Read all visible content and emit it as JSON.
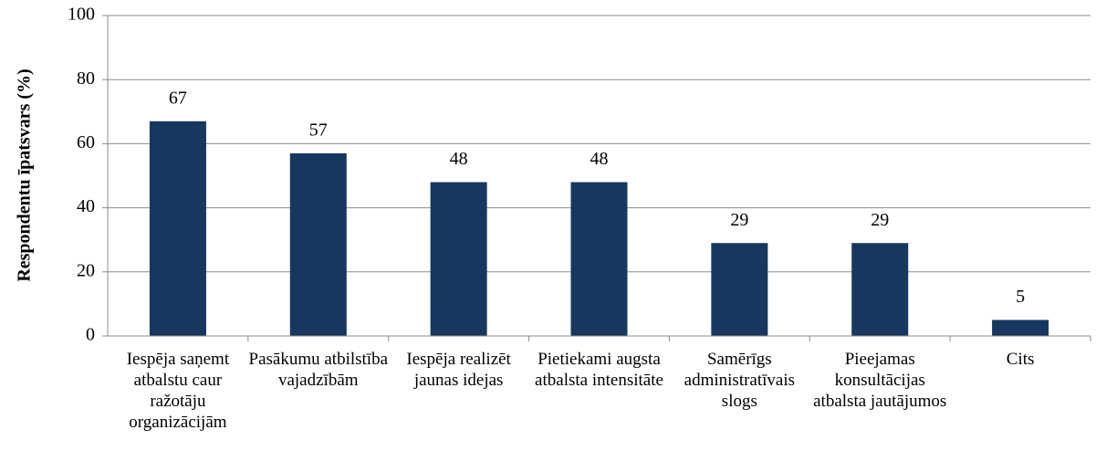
{
  "chart_data": {
    "type": "bar",
    "y_label": "Respondentu īpatsvars (%)",
    "categories": [
      "Iespēja saņemt atbalstu caur ražotāju organizācijām",
      "Pasākumu atbilstība vajadzībām",
      "Iespēja realizēt jaunas idejas",
      "Pietiekami augsta atbalsta intensitāte",
      "Samērīgs administratīvais slogs",
      "Pieejamas konsultācijas atbalsta jautājumos",
      "Cits"
    ],
    "values": [
      67,
      57,
      48,
      48,
      29,
      29,
      5
    ],
    "color": "#17375e",
    "ylim": [
      0,
      100
    ],
    "yticks": [
      0,
      20,
      40,
      60,
      80,
      100
    ],
    "grid": true
  }
}
